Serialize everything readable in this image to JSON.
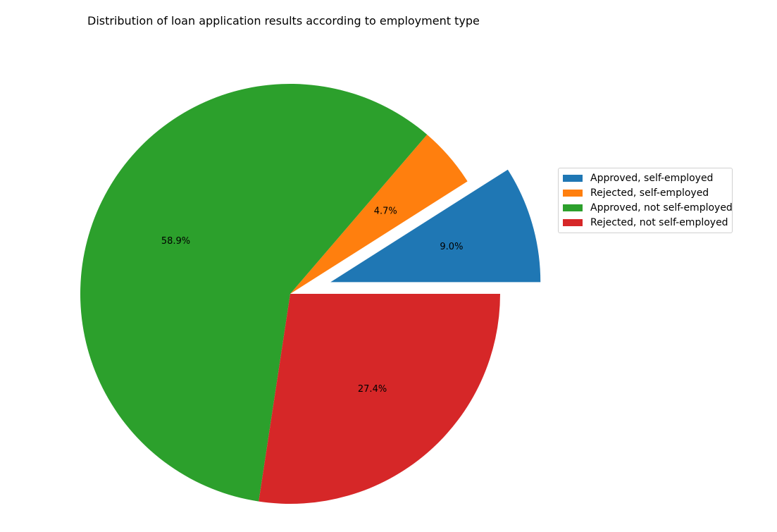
{
  "chart_data": {
    "type": "pie",
    "title": "Distribution of loan application results according to employment type",
    "slices": [
      {
        "label": "Approved, self-employed",
        "value": 9.0,
        "display": "9.0%",
        "color": "#1f77b4",
        "exploded": true
      },
      {
        "label": "Rejected, self-employed",
        "value": 4.7,
        "display": "4.7%",
        "color": "#ff7f0e",
        "exploded": false
      },
      {
        "label": "Approved, not self-employed",
        "value": 58.9,
        "display": "58.9%",
        "color": "#2ca02c",
        "exploded": false
      },
      {
        "label": "Rejected, not self-employed",
        "value": 27.4,
        "display": "27.4%",
        "color": "#d62728",
        "exploded": false
      }
    ],
    "legend_position": "right"
  }
}
